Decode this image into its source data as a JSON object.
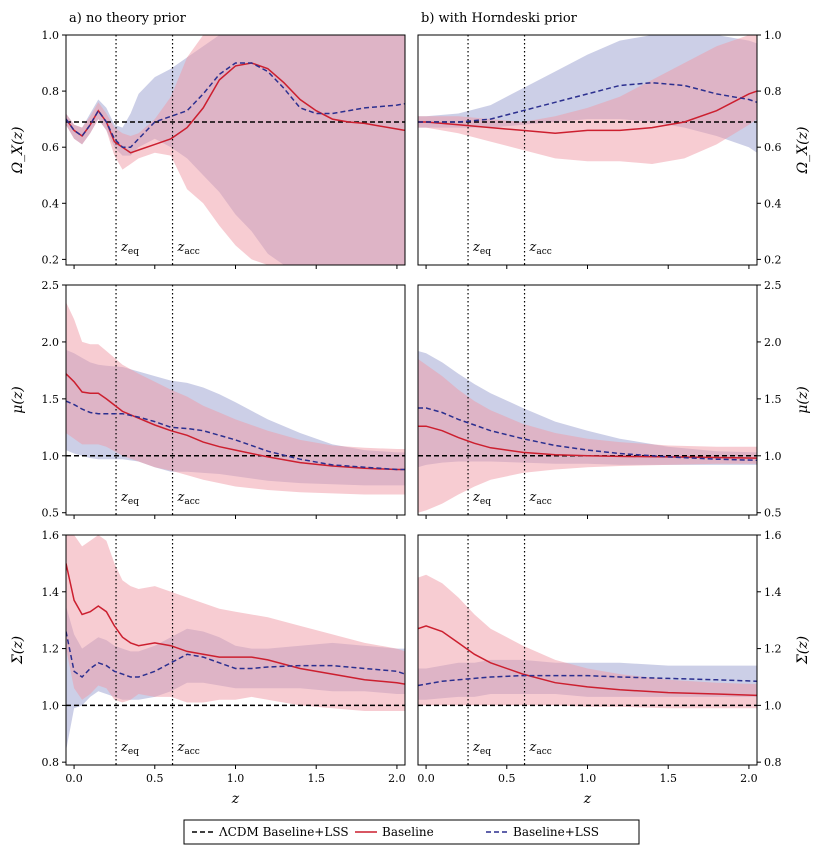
{
  "chart_data": [
    {
      "type": "area",
      "panel": "Omega-no-prior",
      "title": "a) no theory prior",
      "ylabel": "Ω_X(z)",
      "yticks": [
        0.2,
        0.4,
        0.6,
        0.8,
        1.0
      ],
      "ylim": [
        0.18,
        1.0
      ],
      "xlim": [
        -0.05,
        2.05
      ],
      "xticks": [
        0.0,
        0.5,
        1.0,
        1.5,
        2.0
      ],
      "xlabel": "",
      "y_axis_side": "left",
      "lcdm": 0.69,
      "z_eq": 0.26,
      "z_acc": 0.61,
      "x": [
        -0.05,
        0.0,
        0.05,
        0.1,
        0.15,
        0.2,
        0.25,
        0.3,
        0.35,
        0.4,
        0.5,
        0.6,
        0.7,
        0.8,
        0.9,
        1.0,
        1.1,
        1.2,
        1.3,
        1.4,
        1.5,
        1.6,
        1.7,
        1.8,
        1.9,
        2.0,
        2.05
      ],
      "baseline": [
        0.7,
        0.66,
        0.64,
        0.68,
        0.73,
        0.69,
        0.62,
        0.6,
        0.58,
        0.59,
        0.61,
        0.63,
        0.67,
        0.74,
        0.84,
        0.89,
        0.9,
        0.88,
        0.83,
        0.77,
        0.73,
        0.7,
        0.69,
        0.685,
        0.675,
        0.665,
        0.66
      ],
      "baseline_lo": [
        0.68,
        0.63,
        0.61,
        0.65,
        0.7,
        0.66,
        0.57,
        0.52,
        0.54,
        0.56,
        0.58,
        0.57,
        0.45,
        0.4,
        0.32,
        0.25,
        0.2,
        0.18,
        0.18,
        0.18,
        0.18,
        0.18,
        0.18,
        0.18,
        0.18,
        0.18,
        0.18
      ],
      "baseline_hi": [
        0.72,
        0.68,
        0.67,
        0.71,
        0.76,
        0.72,
        0.67,
        0.65,
        0.64,
        0.65,
        0.7,
        0.78,
        0.92,
        1.0,
        1.0,
        1.0,
        1.0,
        1.0,
        1.0,
        1.0,
        1.0,
        1.0,
        1.0,
        1.0,
        1.0,
        1.0,
        1.0
      ],
      "lss": [
        0.7,
        0.66,
        0.64,
        0.68,
        0.73,
        0.69,
        0.63,
        0.6,
        0.6,
        0.63,
        0.69,
        0.71,
        0.73,
        0.79,
        0.86,
        0.9,
        0.9,
        0.87,
        0.81,
        0.74,
        0.72,
        0.72,
        0.73,
        0.74,
        0.745,
        0.75,
        0.755
      ],
      "lss_lo": [
        0.68,
        0.63,
        0.61,
        0.65,
        0.7,
        0.66,
        0.6,
        0.57,
        0.57,
        0.6,
        0.63,
        0.6,
        0.56,
        0.5,
        0.44,
        0.36,
        0.3,
        0.22,
        0.18,
        0.18,
        0.18,
        0.18,
        0.18,
        0.18,
        0.18,
        0.18,
        0.18
      ],
      "lss_hi": [
        0.72,
        0.68,
        0.67,
        0.72,
        0.77,
        0.74,
        0.68,
        0.67,
        0.72,
        0.79,
        0.85,
        0.88,
        0.92,
        0.96,
        1.0,
        1.0,
        1.0,
        1.0,
        1.0,
        1.0,
        1.0,
        1.0,
        1.0,
        1.0,
        1.0,
        1.0,
        1.0
      ]
    },
    {
      "type": "area",
      "panel": "Omega-horndeski",
      "title": "b) with Horndeski prior",
      "ylabel": "Ω_X(z)",
      "yticks": [
        0.2,
        0.4,
        0.6,
        0.8,
        1.0
      ],
      "ylim": [
        0.18,
        1.0
      ],
      "xlim": [
        -0.05,
        2.05
      ],
      "xticks": [
        0.0,
        0.5,
        1.0,
        1.5,
        2.0
      ],
      "xlabel": "",
      "y_axis_side": "right",
      "lcdm": 0.69,
      "z_eq": 0.26,
      "z_acc": 0.61,
      "x": [
        -0.05,
        0.0,
        0.2,
        0.4,
        0.6,
        0.8,
        1.0,
        1.2,
        1.4,
        1.6,
        1.8,
        2.0,
        2.05
      ],
      "baseline": [
        0.69,
        0.69,
        0.68,
        0.67,
        0.66,
        0.65,
        0.66,
        0.66,
        0.67,
        0.69,
        0.73,
        0.79,
        0.8
      ],
      "baseline_lo": [
        0.67,
        0.67,
        0.65,
        0.62,
        0.59,
        0.56,
        0.55,
        0.55,
        0.54,
        0.56,
        0.61,
        0.68,
        0.7
      ],
      "baseline_hi": [
        0.71,
        0.71,
        0.71,
        0.7,
        0.69,
        0.71,
        0.74,
        0.78,
        0.84,
        0.9,
        0.96,
        1.0,
        1.0
      ],
      "lss": [
        0.69,
        0.69,
        0.69,
        0.7,
        0.73,
        0.76,
        0.79,
        0.82,
        0.83,
        0.82,
        0.79,
        0.77,
        0.76
      ],
      "lss_lo": [
        0.67,
        0.67,
        0.67,
        0.67,
        0.68,
        0.69,
        0.7,
        0.7,
        0.69,
        0.67,
        0.64,
        0.6,
        0.58
      ],
      "lss_hi": [
        0.71,
        0.71,
        0.72,
        0.75,
        0.81,
        0.87,
        0.93,
        0.98,
        1.0,
        1.0,
        1.0,
        0.98,
        0.97
      ]
    },
    {
      "type": "area",
      "panel": "mu-no-prior",
      "ylabel": "μ(z)",
      "yticks": [
        0.5,
        1.0,
        1.5,
        2.0,
        2.5
      ],
      "ylim": [
        0.48,
        2.5
      ],
      "xlim": [
        -0.05,
        2.05
      ],
      "xticks": [
        0.0,
        0.5,
        1.0,
        1.5,
        2.0
      ],
      "xlabel": "",
      "y_axis_side": "left",
      "lcdm": 1.0,
      "z_eq": 0.26,
      "z_acc": 0.61,
      "x": [
        -0.05,
        0.0,
        0.05,
        0.1,
        0.15,
        0.2,
        0.3,
        0.4,
        0.5,
        0.6,
        0.7,
        0.8,
        0.9,
        1.0,
        1.2,
        1.4,
        1.6,
        1.8,
        2.0,
        2.05
      ],
      "baseline": [
        1.72,
        1.65,
        1.56,
        1.55,
        1.55,
        1.5,
        1.39,
        1.33,
        1.27,
        1.22,
        1.18,
        1.12,
        1.08,
        1.05,
        0.99,
        0.94,
        0.91,
        0.89,
        0.88,
        0.88
      ],
      "baseline_lo": [
        1.2,
        1.15,
        1.1,
        1.1,
        1.1,
        1.08,
        1.0,
        0.95,
        0.9,
        0.87,
        0.83,
        0.79,
        0.76,
        0.73,
        0.7,
        0.68,
        0.67,
        0.66,
        0.66,
        0.66
      ],
      "baseline_hi": [
        2.35,
        2.2,
        2.0,
        1.98,
        1.98,
        1.92,
        1.8,
        1.72,
        1.65,
        1.58,
        1.52,
        1.44,
        1.38,
        1.32,
        1.22,
        1.14,
        1.09,
        1.07,
        1.06,
        1.06
      ],
      "lss": [
        1.48,
        1.45,
        1.41,
        1.38,
        1.37,
        1.37,
        1.37,
        1.34,
        1.3,
        1.25,
        1.24,
        1.22,
        1.18,
        1.14,
        1.04,
        0.97,
        0.92,
        0.9,
        0.88,
        0.88
      ],
      "lss_lo": [
        1.05,
        1.02,
        1.0,
        0.98,
        0.97,
        0.97,
        0.97,
        0.95,
        0.9,
        0.86,
        0.86,
        0.85,
        0.84,
        0.82,
        0.78,
        0.76,
        0.75,
        0.74,
        0.74,
        0.74
      ],
      "lss_hi": [
        1.93,
        1.9,
        1.86,
        1.82,
        1.8,
        1.79,
        1.78,
        1.74,
        1.7,
        1.66,
        1.64,
        1.6,
        1.54,
        1.47,
        1.32,
        1.2,
        1.1,
        1.05,
        1.03,
        1.03
      ]
    },
    {
      "type": "area",
      "panel": "mu-horndeski",
      "ylabel": "μ(z)",
      "yticks": [
        0.5,
        1.0,
        1.5,
        2.0,
        2.5
      ],
      "ylim": [
        0.48,
        2.5
      ],
      "xlim": [
        -0.05,
        2.05
      ],
      "xticks": [
        0.0,
        0.5,
        1.0,
        1.5,
        2.0
      ],
      "xlabel": "",
      "y_axis_side": "right",
      "lcdm": 1.0,
      "z_eq": 0.26,
      "z_acc": 0.61,
      "x": [
        -0.05,
        0.0,
        0.1,
        0.2,
        0.3,
        0.4,
        0.6,
        0.8,
        1.0,
        1.2,
        1.5,
        1.8,
        2.05
      ],
      "baseline": [
        1.26,
        1.26,
        1.22,
        1.16,
        1.11,
        1.07,
        1.03,
        1.01,
        1.0,
        0.995,
        0.99,
        0.985,
        0.98
      ],
      "baseline_lo": [
        0.5,
        0.52,
        0.58,
        0.66,
        0.73,
        0.79,
        0.85,
        0.88,
        0.9,
        0.91,
        0.92,
        0.93,
        0.93
      ],
      "baseline_hi": [
        1.85,
        1.8,
        1.7,
        1.58,
        1.48,
        1.4,
        1.28,
        1.2,
        1.15,
        1.12,
        1.09,
        1.08,
        1.08
      ],
      "lss": [
        1.42,
        1.42,
        1.38,
        1.32,
        1.27,
        1.22,
        1.15,
        1.09,
        1.05,
        1.02,
        0.99,
        0.97,
        0.96
      ],
      "lss_lo": [
        0.9,
        0.92,
        0.94,
        0.95,
        0.95,
        0.95,
        0.94,
        0.93,
        0.93,
        0.92,
        0.92,
        0.92,
        0.92
      ],
      "lss_hi": [
        1.92,
        1.9,
        1.82,
        1.72,
        1.63,
        1.55,
        1.42,
        1.3,
        1.22,
        1.15,
        1.08,
        1.04,
        1.03
      ]
    },
    {
      "type": "area",
      "panel": "Sigma-no-prior",
      "ylabel": "Σ(z)",
      "yticks": [
        0.8,
        1.0,
        1.2,
        1.4,
        1.6
      ],
      "ylim": [
        0.79,
        1.6
      ],
      "xlim": [
        -0.05,
        2.05
      ],
      "xticks": [
        0.0,
        0.5,
        1.0,
        1.5,
        2.0
      ],
      "xlabel": "z",
      "y_axis_side": "left",
      "lcdm": 1.0,
      "z_eq": 0.26,
      "z_acc": 0.61,
      "x": [
        -0.05,
        0.0,
        0.05,
        0.1,
        0.15,
        0.2,
        0.25,
        0.3,
        0.35,
        0.4,
        0.5,
        0.6,
        0.7,
        0.8,
        0.9,
        1.0,
        1.1,
        1.2,
        1.4,
        1.6,
        1.8,
        2.0,
        2.05
      ],
      "baseline": [
        1.5,
        1.37,
        1.32,
        1.33,
        1.35,
        1.33,
        1.28,
        1.24,
        1.22,
        1.21,
        1.22,
        1.21,
        1.19,
        1.18,
        1.17,
        1.17,
        1.17,
        1.16,
        1.13,
        1.11,
        1.09,
        1.08,
        1.075
      ],
      "baseline_lo": [
        1.2,
        1.06,
        1.02,
        1.04,
        1.07,
        1.06,
        1.02,
        1.01,
        1.02,
        1.04,
        1.03,
        1.03,
        1.01,
        1.01,
        1.02,
        1.02,
        1.03,
        1.02,
        1.0,
        0.99,
        0.98,
        0.98,
        0.98
      ],
      "baseline_hi": [
        1.6,
        1.6,
        1.56,
        1.58,
        1.6,
        1.58,
        1.5,
        1.44,
        1.42,
        1.41,
        1.42,
        1.4,
        1.38,
        1.36,
        1.34,
        1.33,
        1.32,
        1.31,
        1.28,
        1.25,
        1.22,
        1.2,
        1.19
      ],
      "lss": [
        1.26,
        1.12,
        1.1,
        1.13,
        1.15,
        1.14,
        1.12,
        1.11,
        1.1,
        1.1,
        1.12,
        1.15,
        1.18,
        1.17,
        1.15,
        1.13,
        1.13,
        1.135,
        1.14,
        1.14,
        1.13,
        1.12,
        1.11
      ],
      "lss_lo": [
        0.84,
        0.99,
        1.0,
        1.03,
        1.05,
        1.04,
        1.03,
        1.02,
        1.02,
        1.02,
        1.03,
        1.05,
        1.08,
        1.08,
        1.07,
        1.06,
        1.06,
        1.06,
        1.06,
        1.05,
        1.05,
        1.04,
        1.04
      ],
      "lss_hi": [
        1.35,
        1.25,
        1.2,
        1.22,
        1.24,
        1.23,
        1.21,
        1.2,
        1.19,
        1.19,
        1.21,
        1.24,
        1.27,
        1.26,
        1.24,
        1.21,
        1.2,
        1.2,
        1.21,
        1.22,
        1.21,
        1.2,
        1.2
      ]
    },
    {
      "type": "area",
      "panel": "Sigma-horndeski",
      "ylabel": "Σ(z)",
      "yticks": [
        0.8,
        1.0,
        1.2,
        1.4,
        1.6
      ],
      "ylim": [
        0.79,
        1.6
      ],
      "xlim": [
        -0.05,
        2.05
      ],
      "xticks": [
        0.0,
        0.5,
        1.0,
        1.5,
        2.0
      ],
      "xlabel": "z",
      "y_axis_side": "right",
      "lcdm": 1.0,
      "z_eq": 0.26,
      "z_acc": 0.61,
      "x": [
        -0.05,
        0.0,
        0.1,
        0.2,
        0.3,
        0.4,
        0.6,
        0.8,
        1.0,
        1.2,
        1.5,
        1.8,
        2.05
      ],
      "baseline": [
        1.27,
        1.28,
        1.26,
        1.22,
        1.18,
        1.15,
        1.11,
        1.08,
        1.065,
        1.055,
        1.045,
        1.04,
        1.035
      ],
      "baseline_lo": [
        1.0,
        1.0,
        1.0,
        1.0,
        1.0,
        1.0,
        1.0,
        1.0,
        0.995,
        0.995,
        0.99,
        0.99,
        0.99
      ],
      "baseline_hi": [
        1.45,
        1.46,
        1.43,
        1.38,
        1.32,
        1.27,
        1.21,
        1.16,
        1.13,
        1.11,
        1.09,
        1.08,
        1.075
      ],
      "lss": [
        1.07,
        1.075,
        1.085,
        1.09,
        1.095,
        1.1,
        1.105,
        1.105,
        1.105,
        1.1,
        1.095,
        1.09,
        1.085
      ],
      "lss_lo": [
        1.02,
        1.02,
        1.025,
        1.03,
        1.03,
        1.04,
        1.04,
        1.04,
        1.03,
        1.03,
        1.03,
        1.03,
        1.03
      ],
      "lss_hi": [
        1.13,
        1.13,
        1.14,
        1.15,
        1.15,
        1.16,
        1.16,
        1.15,
        1.15,
        1.15,
        1.14,
        1.14,
        1.14
      ]
    }
  ],
  "annotations": {
    "z_eq_label": "z",
    "z_eq_sub": "eq",
    "z_acc_label": "z",
    "z_acc_sub": "acc"
  },
  "legend": {
    "entries": [
      {
        "label": "ΛCDM Baseline+LSS",
        "style": "dashed",
        "color": "#000000"
      },
      {
        "label": "Baseline",
        "style": "solid",
        "color": "#cc1f2f"
      },
      {
        "label": "Baseline+LSS",
        "style": "dashed",
        "color": "#2b2f8f"
      }
    ]
  },
  "colors": {
    "baseline": "#cc1f2f",
    "baseline_band": "#ef9aa5",
    "lss": "#2b2f8f",
    "lss_band": "#9a9fd0",
    "lcdm": "#000000"
  }
}
